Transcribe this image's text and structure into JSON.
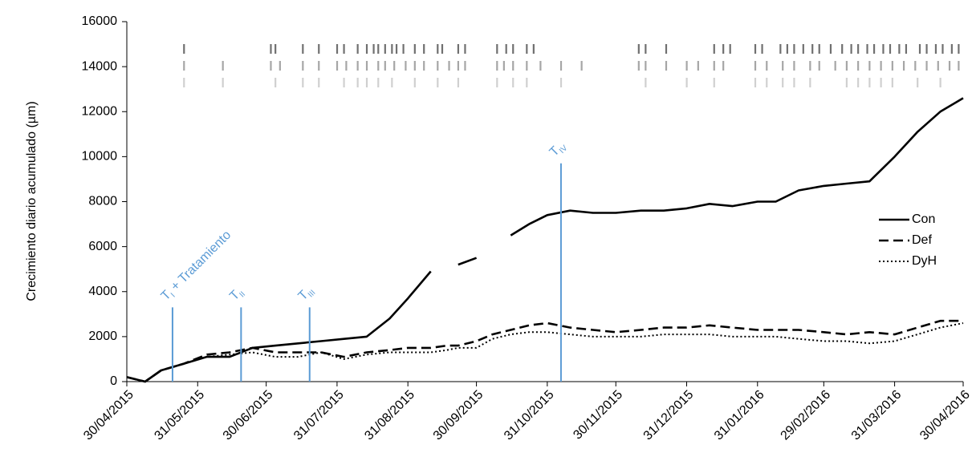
{
  "chart_data": {
    "type": "line",
    "ylabel": "Crecimiento diario acumulado (µm)",
    "xlim": [
      "2015-04-30",
      "2016-04-30"
    ],
    "ylim": [
      0,
      16000
    ],
    "yticks": [
      0,
      2000,
      4000,
      6000,
      8000,
      10000,
      12000,
      14000,
      16000
    ],
    "xticks": [
      {
        "value": "2015-04-30",
        "label": "30/04/2015"
      },
      {
        "value": "2015-05-31",
        "label": "31/05/2015"
      },
      {
        "value": "2015-06-30",
        "label": "30/06/2015"
      },
      {
        "value": "2015-07-31",
        "label": "31/07/2015"
      },
      {
        "value": "2015-08-31",
        "label": "31/08/2015"
      },
      {
        "value": "2015-09-30",
        "label": "30/09/2015"
      },
      {
        "value": "2015-10-31",
        "label": "31/10/2015"
      },
      {
        "value": "2015-11-30",
        "label": "30/11/2015"
      },
      {
        "value": "2015-12-31",
        "label": "31/12/2015"
      },
      {
        "value": "2016-01-31",
        "label": "31/01/2016"
      },
      {
        "value": "2016-02-29",
        "label": "29/02/2016"
      },
      {
        "value": "2016-03-31",
        "label": "31/03/2016"
      },
      {
        "value": "2016-04-30",
        "label": "30/04/2016"
      }
    ],
    "x": [
      "2015-04-30",
      "2015-05-08",
      "2015-05-15",
      "2015-05-25",
      "2015-06-04",
      "2015-06-14",
      "2015-06-24",
      "2015-07-04",
      "2015-07-14",
      "2015-07-24",
      "2015-08-03",
      "2015-08-13",
      "2015-08-23",
      "2015-08-31",
      "2015-09-10",
      "2015-09-17",
      "2015-09-22",
      "2015-09-30",
      "2015-10-07",
      "2015-10-15",
      "2015-10-23",
      "2015-10-31",
      "2015-11-10",
      "2015-11-20",
      "2015-11-30",
      "2015-12-11",
      "2015-12-21",
      "2015-12-31",
      "2016-01-10",
      "2016-01-20",
      "2016-01-31",
      "2016-02-08",
      "2016-02-18",
      "2016-02-29",
      "2016-03-10",
      "2016-03-20",
      "2016-03-31",
      "2016-04-10",
      "2016-04-20",
      "2016-04-30"
    ],
    "series": [
      {
        "name": "Con",
        "color": "#000000",
        "style": "solid",
        "values": [
          200,
          0,
          500,
          800,
          1100,
          1100,
          1500,
          1600,
          1700,
          1800,
          1900,
          2000,
          2800,
          3700,
          4900,
          null,
          5200,
          5500,
          null,
          6500,
          7000,
          7400,
          7600,
          7500,
          7500,
          7600,
          7600,
          7700,
          7900,
          7800,
          8000,
          8000,
          8500,
          8700,
          8800,
          8900,
          10000,
          11100,
          12000,
          12600
        ]
      },
      {
        "name": "Def",
        "color": "#000000",
        "style": "dashed",
        "values": [
          200,
          0,
          500,
          800,
          1200,
          1300,
          1500,
          1300,
          1300,
          1300,
          1100,
          1300,
          1400,
          1500,
          1500,
          1600,
          1600,
          1800,
          2100,
          2300,
          2500,
          2600,
          2400,
          2300,
          2200,
          2300,
          2400,
          2400,
          2500,
          2400,
          2300,
          2300,
          2300,
          2200,
          2100,
          2200,
          2100,
          2400,
          2700,
          2700
        ]
      },
      {
        "name": "DyH",
        "color": "#000000",
        "style": "dotted",
        "values": [
          200,
          0,
          500,
          800,
          1100,
          1200,
          1300,
          1100,
          1100,
          1300,
          1000,
          1200,
          1300,
          1300,
          1300,
          1400,
          1500,
          1500,
          1900,
          2100,
          2200,
          2200,
          2100,
          2000,
          2000,
          2000,
          2100,
          2100,
          2100,
          2000,
          2000,
          2000,
          1900,
          1800,
          1800,
          1700,
          1800,
          2100,
          2400,
          2600
        ]
      }
    ],
    "legend": "right",
    "annotations": [
      {
        "label": "T",
        "sub": "I",
        "suffix": " + Tratamiento",
        "x": "2015-05-20",
        "y": 3300,
        "color": "#5b9bd5"
      },
      {
        "label": "T",
        "sub": "II",
        "x": "2015-06-19",
        "y": 3300,
        "color": "#5b9bd5"
      },
      {
        "label": "T",
        "sub": "III",
        "x": "2015-07-19",
        "y": 3300,
        "color": "#5b9bd5"
      },
      {
        "label": "T",
        "sub": "IV",
        "x": "2015-11-06",
        "y": 9700,
        "color": "#5b9bd5"
      }
    ],
    "event_rows": [
      {
        "color": "#707070",
        "dates": [
          "2015-05-25",
          "2015-07-02",
          "2015-07-04",
          "2015-07-16",
          "2015-07-23",
          "2015-07-31",
          "2015-08-03",
          "2015-08-09",
          "2015-08-13",
          "2015-08-16",
          "2015-08-18",
          "2015-08-21",
          "2015-08-24",
          "2015-08-26",
          "2015-08-29",
          "2015-09-03",
          "2015-09-07",
          "2015-09-13",
          "2015-09-15",
          "2015-09-22",
          "2015-09-25",
          "2015-10-09",
          "2015-10-13",
          "2015-10-16",
          "2015-10-22",
          "2015-10-25",
          "2015-12-10",
          "2015-12-13",
          "2015-12-22",
          "2016-01-12",
          "2016-01-16",
          "2016-01-19",
          "2016-01-30",
          "2016-02-02",
          "2016-02-10",
          "2016-02-13",
          "2016-02-16",
          "2016-02-20",
          "2016-02-24",
          "2016-02-27",
          "2016-03-03",
          "2016-03-08",
          "2016-03-12",
          "2016-03-15",
          "2016-03-19",
          "2016-03-22",
          "2016-03-26",
          "2016-03-29",
          "2016-04-02",
          "2016-04-05",
          "2016-04-11",
          "2016-04-14",
          "2016-04-18",
          "2016-04-21",
          "2016-04-25",
          "2016-04-28"
        ]
      },
      {
        "color": "#a6a6a6",
        "dates": [
          "2015-05-25",
          "2015-06-11",
          "2015-07-02",
          "2015-07-06",
          "2015-07-16",
          "2015-07-23",
          "2015-07-31",
          "2015-08-04",
          "2015-08-09",
          "2015-08-13",
          "2015-08-18",
          "2015-08-21",
          "2015-08-25",
          "2015-08-30",
          "2015-09-03",
          "2015-09-07",
          "2015-09-13",
          "2015-09-18",
          "2015-09-22",
          "2015-09-25",
          "2015-10-09",
          "2015-10-12",
          "2015-10-16",
          "2015-10-22",
          "2015-10-28",
          "2015-11-06",
          "2015-11-15",
          "2015-12-10",
          "2015-12-13",
          "2015-12-22",
          "2015-12-31",
          "2016-01-05",
          "2016-01-12",
          "2016-01-16",
          "2016-01-30",
          "2016-02-04",
          "2016-02-11",
          "2016-02-16",
          "2016-02-23",
          "2016-02-27",
          "2016-03-05",
          "2016-03-10",
          "2016-03-15",
          "2016-03-20",
          "2016-03-25",
          "2016-03-30",
          "2016-04-04",
          "2016-04-09",
          "2016-04-14",
          "2016-04-19",
          "2016-04-24",
          "2016-04-28"
        ]
      },
      {
        "color": "#d0d0d0",
        "dates": [
          "2015-05-25",
          "2015-06-11",
          "2015-07-04",
          "2015-07-16",
          "2015-07-23",
          "2015-08-03",
          "2015-08-09",
          "2015-08-13",
          "2015-08-18",
          "2015-08-24",
          "2015-09-03",
          "2015-09-13",
          "2015-09-22",
          "2015-10-09",
          "2015-10-16",
          "2015-10-22",
          "2015-11-06",
          "2015-12-13",
          "2015-12-31",
          "2016-01-12",
          "2016-01-30",
          "2016-02-04",
          "2016-02-11",
          "2016-02-16",
          "2016-02-23",
          "2016-03-10",
          "2016-03-15",
          "2016-03-20",
          "2016-03-25",
          "2016-03-30",
          "2016-04-10",
          "2016-04-20"
        ]
      }
    ]
  }
}
